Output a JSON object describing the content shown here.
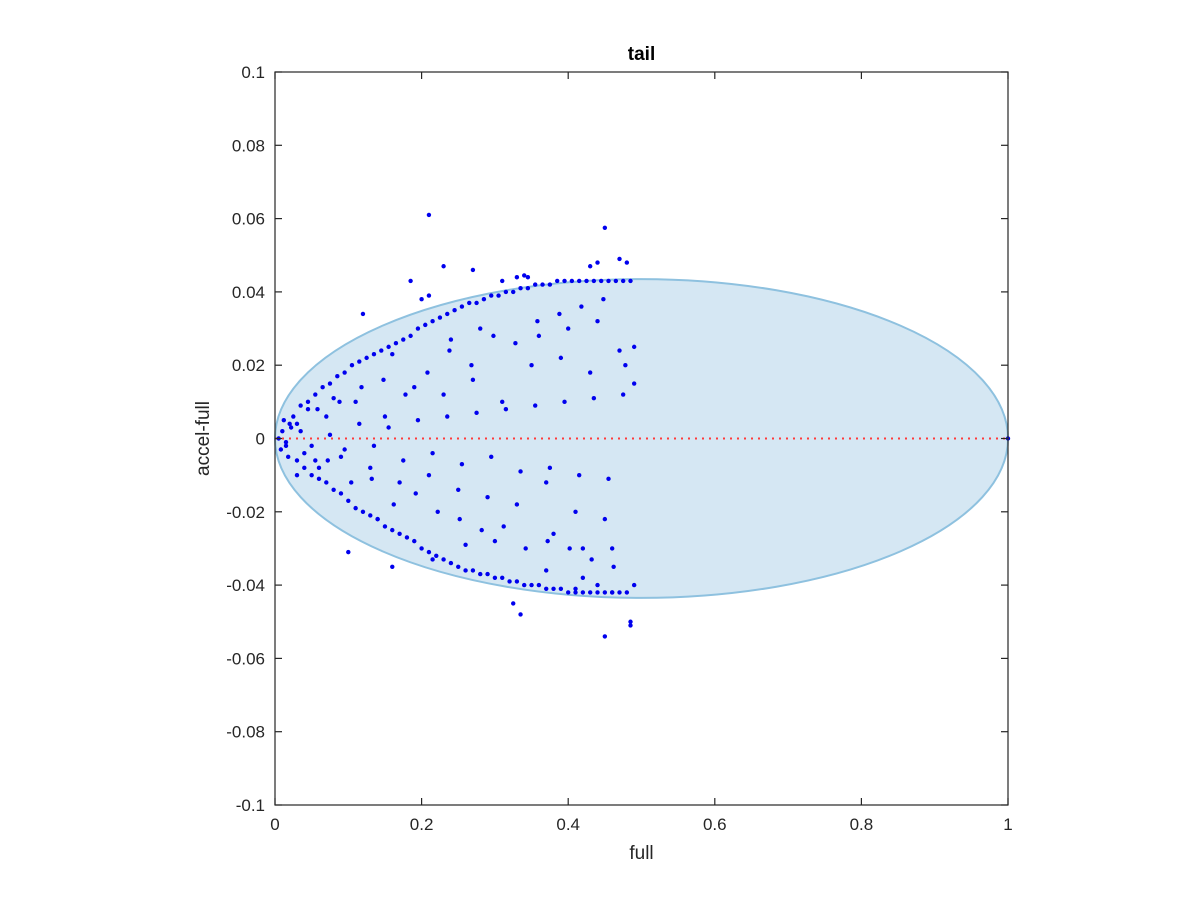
{
  "chart_data": {
    "type": "scatter",
    "title": "tail",
    "xlabel": "full",
    "ylabel": "accel-full",
    "xlim": [
      0,
      1
    ],
    "ylim": [
      -0.1,
      0.1
    ],
    "xticks": [
      0,
      0.2,
      0.4,
      0.6,
      0.8,
      1
    ],
    "xtick_labels": [
      "0",
      "0.2",
      "0.4",
      "0.6",
      "0.8",
      "1"
    ],
    "yticks": [
      -0.1,
      -0.08,
      -0.06,
      -0.04,
      -0.02,
      0,
      0.02,
      0.04,
      0.06,
      0.08,
      0.1
    ],
    "ytick_labels": [
      "-0.1",
      "-0.08",
      "-0.06",
      "-0.04",
      "-0.02",
      "0",
      "0.02",
      "0.04",
      "0.06",
      "0.08",
      "0.1"
    ],
    "grid": false,
    "colors": {
      "points": "#0000ee",
      "ellipse_fill": "#d5e7f3",
      "ellipse_edge": "#8ec1df",
      "zero_line": "#ff3b3b",
      "axes": "#262626"
    },
    "ellipse": {
      "center": [
        0.5,
        0
      ],
      "semi_axis_x": 0.5,
      "semi_axis_y": 0.0435
    },
    "zero_line": {
      "y": 0,
      "x_range": [
        0,
        1
      ],
      "style": "dotted"
    },
    "notes_visible_points": "hundreds of points; x in 0-0.49, spread approximately within |y| <= 0.044",
    "series": [
      {
        "x": [
          0.21,
          0.45,
          0.44,
          0.47,
          0.48,
          0.43,
          0.23,
          0.27,
          0.185,
          0.33,
          0.34,
          0.345,
          0.2,
          0.21,
          0.31,
          0.12,
          0.1,
          0.16,
          0.215,
          0.325,
          0.335,
          0.45,
          0.485,
          0.485,
          0.41,
          0.44,
          0.46,
          0.37,
          0.42,
          0.005,
          0.01,
          0.015,
          0.02,
          0.008,
          0.012,
          0.018,
          0.025,
          0.03,
          0.035,
          0.04,
          0.045,
          0.05,
          0.055,
          0.06,
          0.065,
          0.07,
          0.075,
          0.08,
          0.085,
          0.09,
          0.095,
          0.1,
          0.105,
          0.11,
          0.115,
          0.12,
          0.125,
          0.13,
          0.135,
          0.14,
          0.145,
          0.15,
          0.155,
          0.16,
          0.165,
          0.17,
          0.175,
          0.18,
          0.185,
          0.19,
          0.195,
          0.2,
          0.205,
          0.21,
          0.215,
          0.22,
          0.225,
          0.23,
          0.235,
          0.24,
          0.245,
          0.25,
          0.255,
          0.26,
          0.265,
          0.27,
          0.275,
          0.28,
          0.285,
          0.29,
          0.295,
          0.3,
          0.305,
          0.31,
          0.315,
          0.32,
          0.325,
          0.33,
          0.335,
          0.34,
          0.345,
          0.35,
          0.355,
          0.36,
          0.365,
          0.37,
          0.375,
          0.38,
          0.385,
          0.39,
          0.395,
          0.4,
          0.405,
          0.41,
          0.415,
          0.42,
          0.425,
          0.43,
          0.435,
          0.44,
          0.445,
          0.45,
          0.455,
          0.46,
          0.465,
          0.47,
          0.475,
          0.48,
          0.485,
          0.49,
          0.022,
          0.04,
          0.058,
          0.072,
          0.088,
          0.104,
          0.118,
          0.132,
          0.148,
          0.162,
          0.178,
          0.192,
          0.208,
          0.222,
          0.238,
          0.252,
          0.268,
          0.282,
          0.298,
          0.312,
          0.328,
          0.342,
          0.358,
          0.372,
          0.388,
          0.402,
          0.418,
          0.432,
          0.448,
          0.462,
          0.478,
          0.49,
          0.03,
          0.05,
          0.07,
          0.09,
          0.11,
          0.13,
          0.15,
          0.17,
          0.19,
          0.21,
          0.23,
          0.25,
          0.27,
          0.29,
          0.31,
          0.33,
          0.35,
          0.37,
          0.39,
          0.41,
          0.43,
          0.45,
          0.47,
          0.49,
          0.015,
          0.035,
          0.055,
          0.075,
          0.095,
          0.115,
          0.135,
          0.155,
          0.175,
          0.195,
          0.215,
          0.235,
          0.255,
          0.275,
          0.295,
          0.315,
          0.335,
          0.355,
          0.375,
          0.395,
          0.415,
          0.435,
          0.455,
          0.475,
          0.28,
          0.3,
          0.36,
          0.38,
          0.4,
          0.42,
          0.44,
          0.46,
          0.24,
          0.26,
          0.16,
          0.14,
          0.06,
          0.08,
          0.03,
          0.045,
          1.0
        ],
        "y": [
          0.061,
          0.0575,
          0.048,
          0.049,
          0.048,
          0.047,
          0.047,
          0.046,
          0.043,
          0.044,
          0.0445,
          0.044,
          0.038,
          0.039,
          0.043,
          0.034,
          -0.031,
          -0.035,
          -0.033,
          -0.045,
          -0.048,
          -0.054,
          -0.051,
          -0.05,
          -0.041,
          -0.04,
          -0.042,
          -0.036,
          -0.038,
          0.0,
          0.002,
          -0.002,
          0.004,
          -0.003,
          0.005,
          -0.005,
          0.006,
          -0.006,
          0.009,
          -0.008,
          0.01,
          -0.01,
          0.012,
          -0.011,
          0.014,
          -0.012,
          0.015,
          -0.014,
          0.017,
          -0.015,
          0.018,
          -0.017,
          0.02,
          -0.019,
          0.021,
          -0.02,
          0.022,
          -0.021,
          0.023,
          -0.022,
          0.024,
          -0.024,
          0.025,
          -0.025,
          0.026,
          -0.026,
          0.027,
          -0.027,
          0.028,
          -0.028,
          0.03,
          -0.03,
          0.031,
          -0.031,
          0.032,
          -0.032,
          0.033,
          -0.033,
          0.034,
          -0.034,
          0.035,
          -0.035,
          0.036,
          -0.036,
          0.037,
          -0.036,
          0.037,
          -0.037,
          0.038,
          -0.037,
          0.039,
          -0.038,
          0.039,
          -0.038,
          0.04,
          -0.039,
          0.04,
          -0.039,
          0.041,
          -0.04,
          0.041,
          -0.04,
          0.042,
          -0.04,
          0.042,
          -0.041,
          0.042,
          -0.041,
          0.043,
          -0.041,
          0.043,
          -0.042,
          0.043,
          -0.042,
          0.043,
          -0.042,
          0.043,
          -0.042,
          0.043,
          -0.042,
          0.043,
          -0.042,
          0.043,
          -0.042,
          0.043,
          -0.042,
          0.043,
          -0.042,
          0.043,
          -0.04,
          0.003,
          -0.004,
          0.008,
          -0.006,
          0.01,
          -0.012,
          0.014,
          -0.011,
          0.016,
          -0.018,
          0.012,
          -0.015,
          0.018,
          -0.02,
          0.024,
          -0.022,
          0.02,
          -0.025,
          0.028,
          -0.024,
          0.026,
          -0.03,
          0.032,
          -0.028,
          0.034,
          -0.03,
          0.036,
          -0.033,
          0.038,
          -0.035,
          0.02,
          0.025,
          0.004,
          -0.002,
          0.006,
          -0.005,
          0.01,
          -0.008,
          0.006,
          -0.012,
          0.014,
          -0.01,
          0.012,
          -0.014,
          0.016,
          -0.016,
          0.01,
          -0.018,
          0.02,
          -0.012,
          0.022,
          -0.02,
          0.018,
          -0.022,
          0.024,
          0.015,
          -0.001,
          0.002,
          -0.006,
          0.001,
          -0.003,
          0.004,
          -0.002,
          0.003,
          -0.006,
          0.005,
          -0.004,
          0.006,
          -0.007,
          0.007,
          -0.005,
          0.008,
          -0.009,
          0.009,
          -0.008,
          0.01,
          -0.01,
          0.011,
          -0.011,
          0.012,
          0.03,
          -0.028,
          0.028,
          -0.026,
          0.03,
          -0.03,
          0.032,
          -0.03,
          0.027,
          -0.029,
          0.023,
          -0.022,
          -0.008,
          0.011,
          -0.01,
          0.008,
          0.0
        ]
      }
    ]
  }
}
